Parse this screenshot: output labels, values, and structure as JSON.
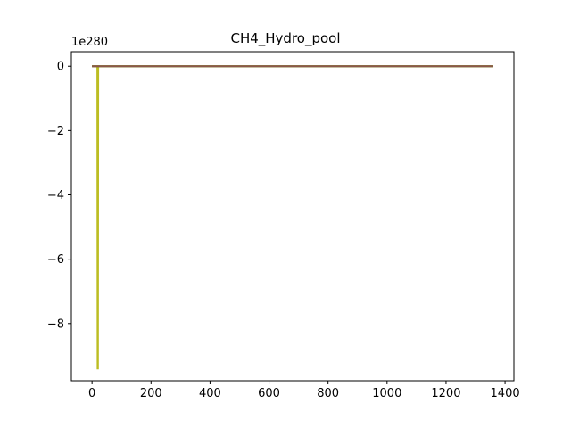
{
  "chart_data": {
    "type": "line",
    "title": "CH4_Hydro_pool",
    "xlabel": "",
    "ylabel": "",
    "y_offset_text": "1e280",
    "xlim": [
      -70,
      1430
    ],
    "ylim": [
      -9.78,
      0.45
    ],
    "x_ticks": [
      0,
      200,
      400,
      600,
      800,
      1000,
      1200,
      1400
    ],
    "y_ticks": [
      0,
      -2,
      -4,
      -6,
      -8
    ],
    "y_tick_labels": [
      "0",
      "−2",
      "−4",
      "−6",
      "−8"
    ],
    "grid": false,
    "series": [
      {
        "color": "#bcbd22",
        "x": [
          0,
          18,
          19,
          20,
          21,
          1360
        ],
        "y": [
          0,
          0,
          -9.4,
          -9.4,
          0,
          0
        ]
      },
      {
        "color": "#ff7f0e",
        "x": [
          0,
          1360
        ],
        "y": [
          0,
          0
        ]
      },
      {
        "color": "#2ca02c",
        "x": [
          0,
          1360
        ],
        "y": [
          0,
          0
        ]
      },
      {
        "color": "#8c564b",
        "x": [
          0,
          1360
        ],
        "y": [
          0,
          0
        ]
      }
    ]
  }
}
